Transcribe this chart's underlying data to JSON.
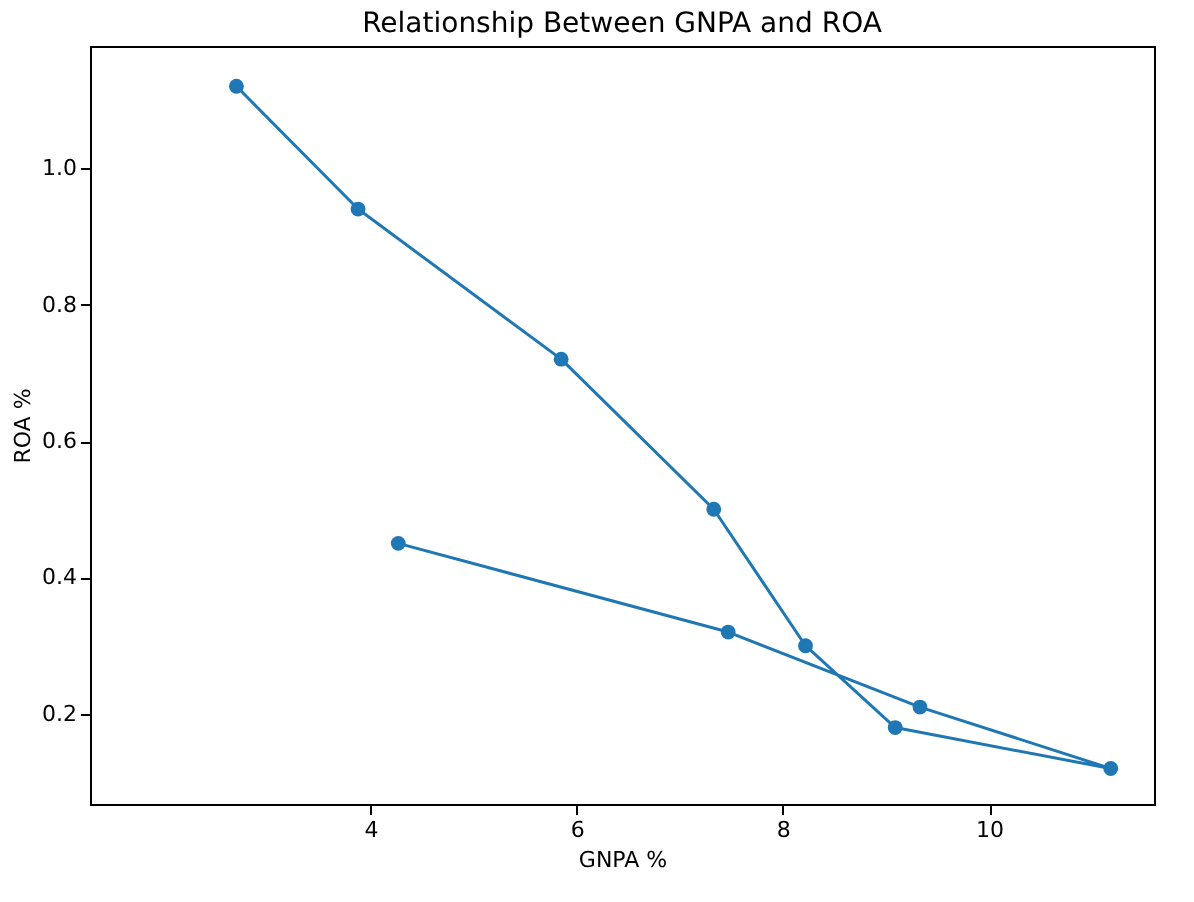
{
  "chart_data": {
    "type": "line",
    "title": "Relationship Between GNPA and ROA",
    "xlabel": "GNPA %",
    "ylabel": "ROA %",
    "series": [
      {
        "color": "#1f77b4",
        "x": [
          2.7,
          3.88,
          5.85,
          7.33,
          8.22,
          9.09,
          11.18,
          9.33,
          7.47,
          4.27
        ],
        "values": [
          1.12,
          0.94,
          0.72,
          0.5,
          0.3,
          0.18,
          0.12,
          0.21,
          0.32,
          0.45
        ]
      }
    ],
    "xlim": [
      1.28,
      11.6
    ],
    "xticks": [
      4,
      6,
      8,
      10
    ],
    "ylim": [
      0.068,
      1.179
    ],
    "yticks": [
      0.2,
      0.4,
      0.6,
      0.8,
      {
        "value": 1,
        "label": "1.0"
      }
    ],
    "marker": "circle",
    "line_style": "solid",
    "grid": false
  }
}
